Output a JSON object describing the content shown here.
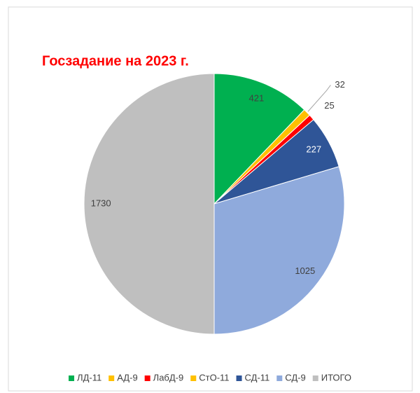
{
  "chart_data": {
    "type": "pie",
    "title": "Госзадание на 2023 г.",
    "categories": [
      "ЛД-11",
      "АД-9",
      "ЛабД-9",
      "СтО-11",
      "СД-11",
      "СД-9",
      "ИТОГО"
    ],
    "values": [
      421,
      32,
      25,
      0,
      227,
      1025,
      1730
    ],
    "colors": [
      "#00b050",
      "#ffc000",
      "#ff0000",
      "#ffc000",
      "#2f5597",
      "#8faadc",
      "#bfbfbf"
    ],
    "legend": "bottom"
  }
}
